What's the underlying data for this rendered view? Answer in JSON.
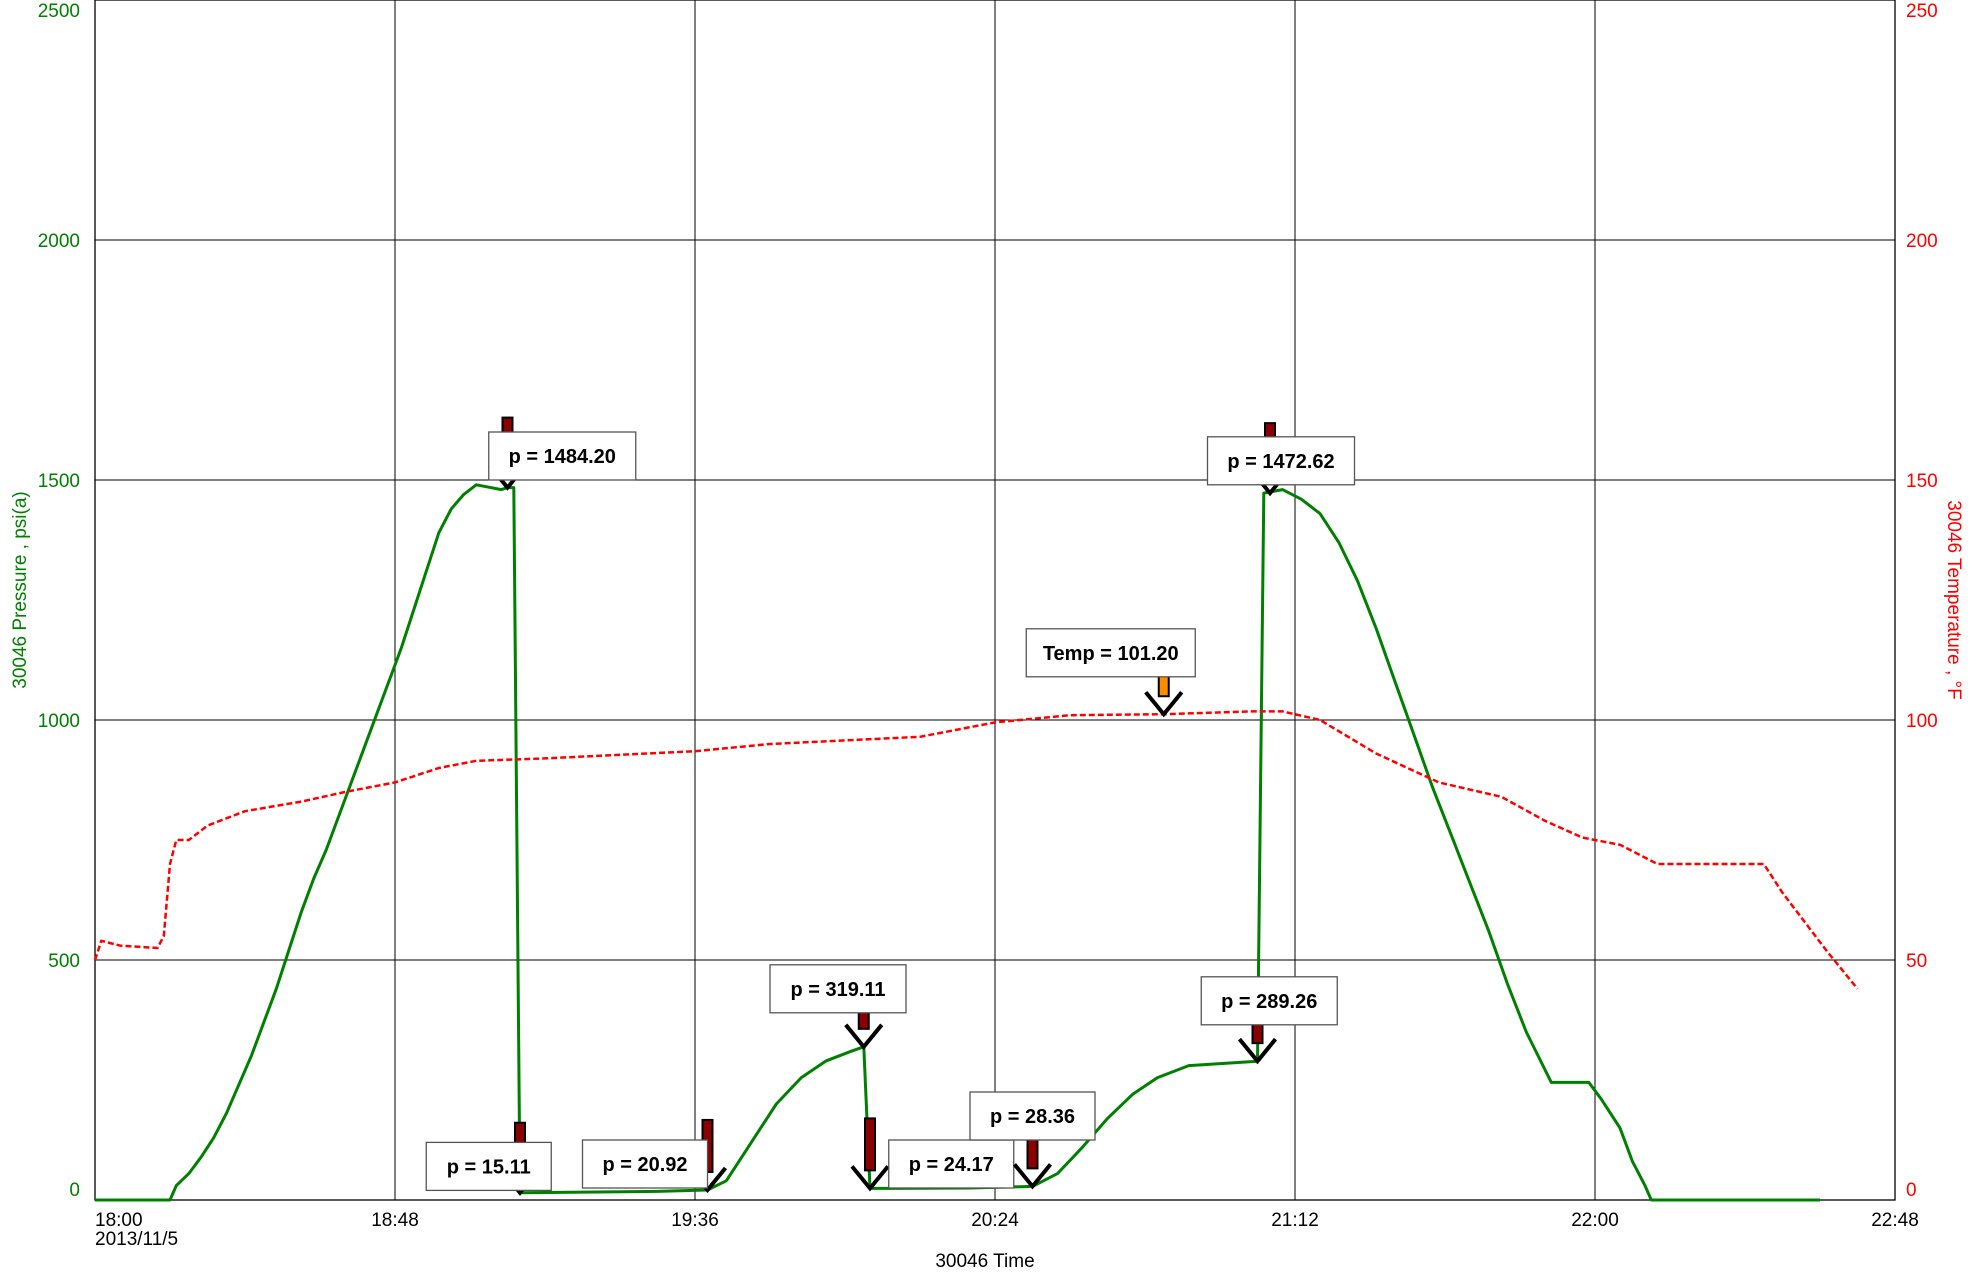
{
  "colors": {
    "pressure": "#008000",
    "temperature": "#ff0000",
    "grid": "#000000",
    "arrow_pressure": "#8b0000",
    "arrow_temp": "#ff8c00"
  },
  "chart_data": {
    "type": "line",
    "title": "",
    "xlabel": "30046 Time",
    "x_date_label": "2013/11/5",
    "ylabel_left": "30046 Pressure , psi(a)",
    "ylabel_right": "30046 Temperature , °F",
    "xlim": [
      "18:00",
      "22:48"
    ],
    "ylim_left": [
      0,
      2500
    ],
    "ylim_right": [
      0,
      250
    ],
    "x_ticks": [
      "18:00",
      "18:48",
      "19:36",
      "20:24",
      "21:12",
      "22:00",
      "22:48"
    ],
    "y_ticks_left": [
      "0",
      "500",
      "1000",
      "1500",
      "2000",
      "2500"
    ],
    "y_ticks_right": [
      "0",
      "50",
      "100",
      "150",
      "200",
      "250"
    ],
    "grid": true,
    "series": [
      {
        "name": "30046 Pressure",
        "axis": "left",
        "style": "solid",
        "points": [
          [
            "18:00",
            0
          ],
          [
            "18:12",
            0
          ],
          [
            "18:13",
            30
          ],
          [
            "18:15",
            55
          ],
          [
            "18:17",
            90
          ],
          [
            "18:19",
            130
          ],
          [
            "18:21",
            180
          ],
          [
            "18:23",
            240
          ],
          [
            "18:25",
            300
          ],
          [
            "18:27",
            370
          ],
          [
            "18:29",
            440
          ],
          [
            "18:31",
            520
          ],
          [
            "18:33",
            600
          ],
          [
            "18:35",
            670
          ],
          [
            "18:37",
            730
          ],
          [
            "18:39",
            800
          ],
          [
            "18:41",
            870
          ],
          [
            "18:43",
            940
          ],
          [
            "18:45",
            1010
          ],
          [
            "18:47",
            1080
          ],
          [
            "18:49",
            1150
          ],
          [
            "18:51",
            1230
          ],
          [
            "18:53",
            1310
          ],
          [
            "18:55",
            1390
          ],
          [
            "18:57",
            1440
          ],
          [
            "18:59",
            1470
          ],
          [
            "19:01",
            1490
          ],
          [
            "19:03",
            1485
          ],
          [
            "19:05",
            1480
          ],
          [
            "19:06",
            1484.2
          ],
          [
            "19:07",
            1484.2
          ],
          [
            "19:08",
            15.11
          ],
          [
            "19:30",
            18
          ],
          [
            "19:38",
            20.92
          ],
          [
            "19:41",
            40
          ],
          [
            "19:45",
            120
          ],
          [
            "19:49",
            200
          ],
          [
            "19:53",
            255
          ],
          [
            "19:57",
            290
          ],
          [
            "20:01",
            310
          ],
          [
            "20:03",
            319.11
          ],
          [
            "20:04",
            24.17
          ],
          [
            "20:20",
            25
          ],
          [
            "20:30",
            28.36
          ],
          [
            "20:34",
            55
          ],
          [
            "20:38",
            110
          ],
          [
            "20:42",
            170
          ],
          [
            "20:46",
            220
          ],
          [
            "20:50",
            255
          ],
          [
            "20:55",
            280
          ],
          [
            "21:06",
            289.26
          ],
          [
            "21:07",
            1472.62
          ],
          [
            "21:10",
            1480
          ],
          [
            "21:13",
            1460
          ],
          [
            "21:16",
            1430
          ],
          [
            "21:19",
            1370
          ],
          [
            "21:22",
            1290
          ],
          [
            "21:25",
            1190
          ],
          [
            "21:28",
            1080
          ],
          [
            "21:31",
            970
          ],
          [
            "21:34",
            860
          ],
          [
            "21:37",
            760
          ],
          [
            "21:40",
            660
          ],
          [
            "21:43",
            560
          ],
          [
            "21:46",
            450
          ],
          [
            "21:49",
            350
          ],
          [
            "21:53",
            245
          ],
          [
            "21:59",
            245
          ],
          [
            "22:01",
            210
          ],
          [
            "22:04",
            150
          ],
          [
            "22:06",
            80
          ],
          [
            "22:08",
            30
          ],
          [
            "22:09",
            0
          ],
          [
            "22:36",
            0
          ]
        ]
      },
      {
        "name": "30046 Temperature",
        "axis": "right",
        "style": "dashed",
        "points": [
          [
            "18:00",
            50
          ],
          [
            "18:01",
            54
          ],
          [
            "18:04",
            53
          ],
          [
            "18:10",
            52.5
          ],
          [
            "18:11",
            55
          ],
          [
            "18:12",
            70
          ],
          [
            "18:13",
            75
          ],
          [
            "18:15",
            75
          ],
          [
            "18:18",
            78
          ],
          [
            "18:24",
            81
          ],
          [
            "18:33",
            83
          ],
          [
            "18:40",
            85
          ],
          [
            "18:48",
            87
          ],
          [
            "18:55",
            90
          ],
          [
            "19:01",
            91.5
          ],
          [
            "19:12",
            92
          ],
          [
            "19:36",
            93.5
          ],
          [
            "19:48",
            95
          ],
          [
            "20:12",
            96.5
          ],
          [
            "20:24",
            99.5
          ],
          [
            "20:36",
            101
          ],
          [
            "20:51",
            101.2
          ],
          [
            "21:05",
            101.8
          ],
          [
            "21:10",
            101.8
          ],
          [
            "21:16",
            100
          ],
          [
            "21:25",
            93
          ],
          [
            "21:35",
            87
          ],
          [
            "21:45",
            84
          ],
          [
            "21:52",
            79
          ],
          [
            "21:58",
            75.5
          ],
          [
            "22:04",
            74
          ],
          [
            "22:10",
            70
          ],
          [
            "22:27",
            70
          ],
          [
            "22:30",
            64
          ],
          [
            "22:37",
            52
          ],
          [
            "22:42",
            44
          ]
        ]
      }
    ],
    "annotations": [
      {
        "label": "p = 1484.20",
        "x": "19:06",
        "value": 1484.2,
        "axis": "left",
        "box_x": "19:03",
        "box_y": 1600,
        "arrow": "pressure"
      },
      {
        "label": "p = 1472.62",
        "x": "21:08",
        "value": 1472.62,
        "axis": "left",
        "box_x": "20:58",
        "box_y": 1590,
        "arrow": "pressure"
      },
      {
        "label": "Temp = 101.20",
        "x": "20:51",
        "value": 101.2,
        "axis": "right",
        "box_x": "20:29",
        "box_y": 1190,
        "arrow": "temp"
      },
      {
        "label": "p = 319.11",
        "x": "20:03",
        "value": 319.11,
        "axis": "left",
        "box_x": "19:48",
        "box_y": 490,
        "arrow": "pressure"
      },
      {
        "label": "p = 289.26",
        "x": "21:06",
        "value": 289.26,
        "axis": "left",
        "box_x": "20:57",
        "box_y": 465,
        "arrow": "pressure"
      },
      {
        "label": "p = 15.11",
        "x": "19:08",
        "value": 15.11,
        "axis": "left",
        "box_x": "18:53",
        "box_y": 120,
        "arrow": "pressure"
      },
      {
        "label": "p = 20.92",
        "x": "19:38",
        "value": 20.92,
        "axis": "left",
        "box_x": "19:18",
        "box_y": 125,
        "arrow": "pressure"
      },
      {
        "label": "p = 24.17",
        "x": "20:04",
        "value": 24.17,
        "axis": "left",
        "box_x": "20:07",
        "box_y": 125,
        "arrow": "pressure"
      },
      {
        "label": "p = 28.36",
        "x": "20:30",
        "value": 28.36,
        "axis": "left",
        "box_x": "20:20",
        "box_y": 225,
        "arrow": "pressure"
      }
    ]
  }
}
